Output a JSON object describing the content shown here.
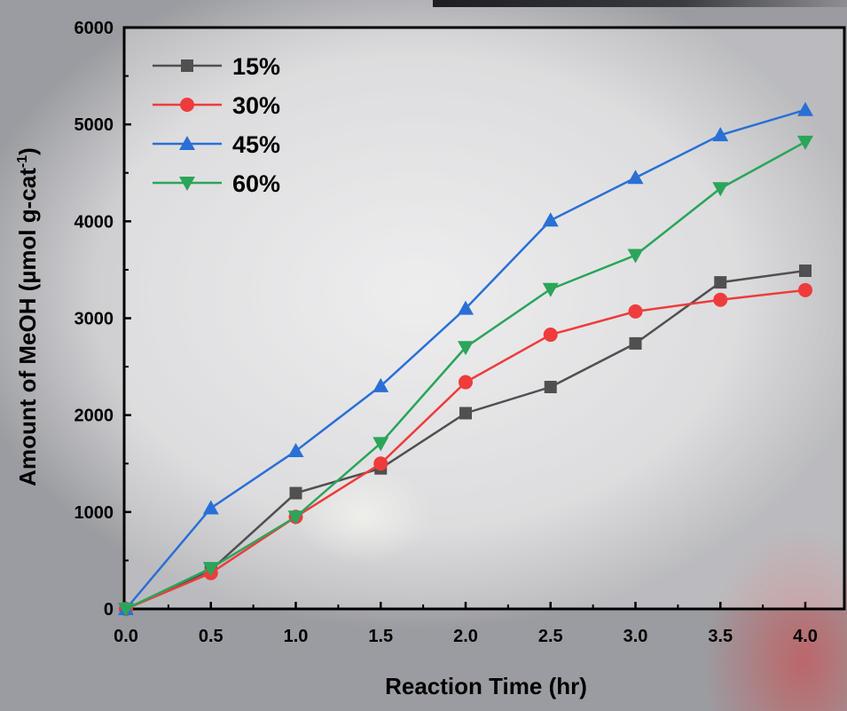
{
  "chart_data": {
    "type": "line",
    "xlabel": "Reaction Time (hr)",
    "ylabel": {
      "main": "Amount of MeOH (µmol g-cat",
      "sup": "-1",
      "close": ")"
    },
    "xlim": [
      0,
      4
    ],
    "ylim": [
      0,
      6000
    ],
    "xticks": [
      "0.0",
      "0.5",
      "1.0",
      "1.5",
      "2.0",
      "2.5",
      "3.0",
      "3.5",
      "4.0"
    ],
    "yticks": [
      "0",
      "1000",
      "2000",
      "3000",
      "4000",
      "5000",
      "6000"
    ],
    "grid": false,
    "legend_position": "top-left",
    "x": [
      0,
      0.5,
      1.0,
      1.5,
      2.0,
      2.5,
      3.0,
      3.5,
      4.0
    ],
    "series": [
      {
        "name": "15%",
        "color": "#505050",
        "marker": "square",
        "values": [
          0,
          400,
          1195,
          1450,
          2020,
          2290,
          2740,
          3370,
          3490
        ]
      },
      {
        "name": "30%",
        "color": "#ef3b3b",
        "marker": "circle",
        "values": [
          0,
          370,
          950,
          1500,
          2340,
          2830,
          3070,
          3190,
          3290
        ]
      },
      {
        "name": "45%",
        "color": "#2a6fd6",
        "marker": "triangle-up",
        "values": [
          0,
          1040,
          1630,
          2300,
          3100,
          4010,
          4450,
          4890,
          5150
        ]
      },
      {
        "name": "60%",
        "color": "#2aa55a",
        "marker": "triangle-down",
        "values": [
          0,
          420,
          950,
          1710,
          2700,
          3300,
          3650,
          4340,
          4820
        ]
      }
    ]
  }
}
